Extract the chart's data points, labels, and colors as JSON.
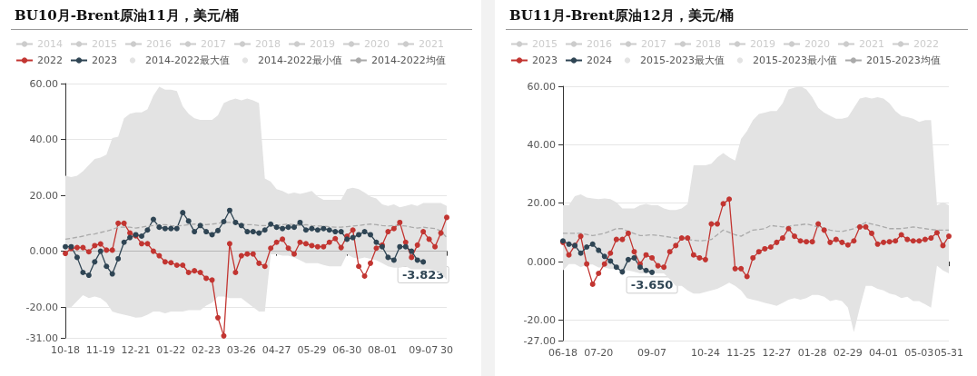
{
  "chart_data": [
    {
      "type": "line",
      "title": "BU10月-Brent原油11月，美元/桶",
      "legend": "top",
      "grid": "y",
      "marker": "circle",
      "line_style": "solid",
      "categories": [
        "10-18",
        null,
        null,
        null,
        null,
        null,
        "11-19",
        null,
        null,
        null,
        null,
        null,
        "12-21",
        null,
        null,
        null,
        null,
        null,
        "01-22",
        null,
        null,
        null,
        null,
        null,
        "02-23",
        null,
        null,
        null,
        null,
        null,
        "03-26",
        null,
        null,
        null,
        null,
        null,
        "04-27",
        null,
        null,
        null,
        null,
        null,
        "05-29",
        null,
        null,
        null,
        null,
        null,
        "06-30",
        null,
        null,
        null,
        null,
        null,
        "08-01",
        null,
        null,
        null,
        null,
        null,
        null,
        "09-07",
        null,
        null,
        null,
        "30"
      ],
      "ylim": [
        -31,
        60
      ],
      "yticks": [
        {
          "value": -31,
          "label": "-31.00"
        },
        {
          "value": -20,
          "label": "-20.00"
        },
        {
          "value": 0,
          "label": "0.000"
        },
        {
          "value": 20,
          "label": "20.00"
        },
        {
          "value": 40,
          "label": "40.00"
        },
        {
          "value": 60,
          "label": "60.00"
        }
      ],
      "annotations": [
        {
          "text": "-3.823",
          "x": "09-07",
          "y": -3.823
        }
      ],
      "series": [
        {
          "name": "2014",
          "color": "#cccccc",
          "values": [
            null,
            null,
            null,
            null,
            null,
            null,
            null,
            null,
            null,
            null,
            null,
            null,
            null,
            null,
            null,
            null,
            null,
            null,
            null,
            null,
            null,
            null,
            null,
            null,
            null,
            null,
            null,
            null,
            null,
            null,
            null,
            null,
            null,
            null,
            null,
            null,
            null,
            null,
            null,
            null,
            null,
            null,
            null,
            null,
            null,
            null,
            null,
            null,
            null,
            null,
            null,
            null,
            null,
            null,
            null,
            null,
            null,
            null,
            null,
            null,
            null,
            null,
            null,
            null,
            null,
            null
          ]
        },
        {
          "name": "2015",
          "color": "#cccccc",
          "values": [
            null,
            null,
            null,
            null,
            null,
            null,
            null,
            null,
            null,
            null,
            null,
            null,
            null,
            null,
            null,
            null,
            null,
            null,
            null,
            null,
            null,
            null,
            null,
            null,
            null,
            null,
            null,
            null,
            null,
            null,
            null,
            null,
            null,
            null,
            null,
            null,
            null,
            null,
            null,
            null,
            null,
            null,
            null,
            null,
            null,
            null,
            null,
            null,
            null,
            null,
            null,
            null,
            null,
            null,
            null,
            null,
            null,
            null,
            null,
            null,
            null,
            null,
            null,
            null,
            null,
            null
          ]
        },
        {
          "name": "2016",
          "color": "#cccccc",
          "values": [
            null,
            null,
            null,
            null,
            null,
            null,
            null,
            null,
            null,
            null,
            null,
            null,
            null,
            null,
            null,
            null,
            null,
            null,
            null,
            null,
            null,
            null,
            null,
            null,
            null,
            null,
            null,
            null,
            null,
            null,
            null,
            null,
            null,
            null,
            null,
            null,
            null,
            null,
            null,
            null,
            null,
            null,
            null,
            null,
            null,
            null,
            null,
            null,
            null,
            null,
            null,
            null,
            null,
            null,
            null,
            null,
            null,
            null,
            null,
            null,
            null,
            null,
            null,
            null,
            null,
            null
          ]
        },
        {
          "name": "2017",
          "color": "#cccccc",
          "values": [
            null,
            null,
            null,
            null,
            null,
            null,
            null,
            null,
            null,
            null,
            null,
            null,
            null,
            null,
            null,
            null,
            null,
            null,
            null,
            null,
            null,
            null,
            null,
            null,
            null,
            null,
            null,
            null,
            null,
            null,
            null,
            null,
            null,
            null,
            null,
            null,
            null,
            null,
            null,
            null,
            null,
            null,
            null,
            null,
            null,
            null,
            null,
            null,
            null,
            null,
            null,
            null,
            null,
            null,
            null,
            null,
            null,
            null,
            null,
            null,
            null,
            null,
            null,
            null,
            null,
            null
          ]
        },
        {
          "name": "2018",
          "color": "#cccccc",
          "values": [
            null,
            null,
            null,
            null,
            null,
            null,
            null,
            null,
            null,
            null,
            null,
            null,
            null,
            null,
            null,
            null,
            null,
            null,
            null,
            null,
            null,
            null,
            null,
            null,
            null,
            null,
            null,
            null,
            null,
            null,
            null,
            null,
            null,
            null,
            null,
            null,
            null,
            null,
            null,
            null,
            null,
            null,
            null,
            null,
            null,
            null,
            null,
            null,
            null,
            null,
            null,
            null,
            null,
            null,
            null,
            null,
            null,
            null,
            null,
            null,
            null,
            null,
            null,
            null,
            null,
            null
          ]
        },
        {
          "name": "2019",
          "color": "#cccccc",
          "values": [
            null,
            null,
            null,
            null,
            null,
            null,
            null,
            null,
            null,
            null,
            null,
            null,
            null,
            null,
            null,
            null,
            null,
            null,
            null,
            null,
            null,
            null,
            null,
            null,
            null,
            null,
            null,
            null,
            null,
            null,
            null,
            null,
            null,
            null,
            null,
            null,
            null,
            null,
            null,
            null,
            null,
            null,
            null,
            null,
            null,
            null,
            null,
            null,
            null,
            null,
            null,
            null,
            null,
            null,
            null,
            null,
            null,
            null,
            null,
            null,
            null,
            null,
            null,
            null,
            null,
            null
          ]
        },
        {
          "name": "2020",
          "color": "#cccccc",
          "values": [
            null,
            null,
            null,
            null,
            null,
            null,
            null,
            null,
            null,
            null,
            null,
            null,
            null,
            null,
            null,
            null,
            null,
            null,
            null,
            null,
            null,
            null,
            null,
            null,
            null,
            null,
            null,
            null,
            null,
            null,
            null,
            null,
            null,
            null,
            null,
            null,
            null,
            null,
            null,
            null,
            null,
            null,
            null,
            null,
            null,
            null,
            null,
            null,
            null,
            null,
            null,
            null,
            null,
            null,
            null,
            null,
            null,
            null,
            null,
            null,
            null,
            null,
            null,
            null,
            null,
            null
          ]
        },
        {
          "name": "2021",
          "color": "#cccccc",
          "values": [
            null,
            null,
            null,
            null,
            null,
            null,
            null,
            null,
            null,
            null,
            null,
            null,
            null,
            null,
            null,
            null,
            null,
            null,
            null,
            null,
            null,
            null,
            null,
            null,
            null,
            null,
            null,
            null,
            null,
            null,
            null,
            null,
            null,
            null,
            null,
            null,
            null,
            null,
            null,
            null,
            null,
            null,
            null,
            null,
            null,
            null,
            null,
            null,
            null,
            null,
            null,
            null,
            null,
            null,
            null,
            null,
            null,
            null,
            null,
            null,
            null,
            null,
            null,
            null,
            null,
            null
          ]
        },
        {
          "name": "2022",
          "color": "#c23531",
          "values": [
            -0.8,
            1,
            1.3,
            1.3,
            -0.2,
            2,
            2.6,
            0.4,
            0.4,
            10,
            10,
            6.5,
            5.5,
            2.7,
            2.7,
            0,
            -1.6,
            -3.8,
            -4.1,
            -5,
            -5,
            -7.6,
            -7,
            -7.6,
            -9.7,
            -10.3,
            -23.8,
            -30.3,
            2.7,
            -7.6,
            -1.6,
            -1,
            -1,
            -4.3,
            -5.4,
            1.1,
            3.2,
            4.3,
            1.1,
            -1,
            3.2,
            2.7,
            2,
            1.6,
            1.6,
            3.2,
            4.5,
            1.3,
            5.4,
            7.6,
            -5.4,
            -8.9,
            -4.3,
            1.1,
            2.2,
            7,
            8.1,
            10.3,
            3.2,
            -2.2,
            2.2,
            7,
            4.3,
            1.6,
            6.5,
            12.1
          ]
        },
        {
          "name": "2023",
          "color": "#2f4554",
          "values": [
            1.6,
            1.6,
            -2.2,
            -7.6,
            -8.6,
            -3.8,
            0,
            -5.4,
            -8.1,
            -2.7,
            3.2,
            4.9,
            5.9,
            5.4,
            7.6,
            11.4,
            8.6,
            8.1,
            8.1,
            8.1,
            13.8,
            10.8,
            7,
            9.2,
            7,
            5.9,
            7.4,
            10.6,
            14.6,
            10.3,
            9.2,
            7,
            7,
            6.5,
            7.6,
            9.7,
            8.6,
            8.1,
            8.6,
            8.6,
            10.3,
            7.6,
            8.1,
            7.6,
            8.1,
            7.6,
            7,
            7,
            4.3,
            4.9,
            5.9,
            7,
            5.9,
            3.2,
            1.6,
            -2.2,
            -3.2,
            1.6,
            1.6,
            0,
            -3.2,
            -3.823,
            null,
            null,
            null,
            null
          ]
        },
        {
          "name": "2014-2022最大值",
          "type": "area",
          "marker": "none",
          "color": "#e3e3e3",
          "values": [
            27,
            26.5,
            27,
            28.6,
            30.8,
            33,
            33.5,
            34.6,
            40.5,
            41,
            47.6,
            49.2,
            49.7,
            49.7,
            50.8,
            55.7,
            58.9,
            57.8,
            57.8,
            57.3,
            51.9,
            49.2,
            47.6,
            47,
            47,
            47,
            48.6,
            53,
            54,
            54.6,
            54,
            54.6,
            54,
            53,
            26,
            24.9,
            22.2,
            21.6,
            20.5,
            21,
            20.5,
            21,
            21.6,
            19.5,
            18.4,
            18.4,
            18.4,
            18.4,
            22.2,
            22.7,
            22.2,
            21,
            19.5,
            18.9,
            16.8,
            16.2,
            16.8,
            15.7,
            16.2,
            16.8,
            16.2,
            17.3,
            17.3,
            17.3,
            17.3,
            16.2
          ]
        },
        {
          "name": "2014-2022最小值",
          "type": "area",
          "marker": "none",
          "color": "#e3e3e3",
          "values": [
            -20,
            -20,
            -17.8,
            -15.7,
            -16.8,
            -16.2,
            -16.8,
            -18.4,
            -21.6,
            -22.2,
            -22.7,
            -23.2,
            -23.8,
            -23.6,
            -22.7,
            -21.6,
            -21.6,
            -22.2,
            -21.6,
            -21.6,
            -21.6,
            -21.1,
            -21.1,
            -21.1,
            -19.5,
            -18.4,
            -16.2,
            -16.2,
            -16.8,
            -16.8,
            -16.8,
            -18.4,
            -20,
            -21.6,
            -21.6,
            -1.1,
            -1.1,
            -1.6,
            -1.6,
            -2.2,
            -3.2,
            -4.3,
            -4.3,
            -4.3,
            -4.9,
            -5.4,
            -5.4,
            -5.4,
            -1.1,
            -2.2,
            -2.7,
            -2.2,
            -2.7,
            -3.2,
            -4.3,
            -5.4,
            -5.9,
            -5.9,
            -5.4,
            -6.5,
            -6.5,
            -6.5,
            -6.5,
            -7,
            -7.6,
            -10.3
          ]
        },
        {
          "name": "2014-2022均值",
          "marker": "none",
          "line_style": "dashed",
          "color": "#aaaaaa",
          "values": [
            4.3,
            4.6,
            5,
            5.4,
            5.9,
            6.2,
            6.7,
            7.2,
            7.8,
            8.6,
            8.6,
            8.6,
            8.3,
            8.6,
            9,
            9.2,
            9.5,
            9.5,
            9.2,
            9,
            9.2,
            9.5,
            9.7,
            9.7,
            9.5,
            9.7,
            10,
            10.3,
            10.3,
            10,
            9.7,
            9.5,
            9.5,
            9.2,
            9.2,
            9,
            9.2,
            9.5,
            9.7,
            9.5,
            9.2,
            9.5,
            9.2,
            9,
            9,
            8.8,
            8.6,
            8.6,
            8.8,
            9,
            9.2,
            9.5,
            9.7,
            9.5,
            9.2,
            9,
            9.2,
            9.2,
            9,
            8.6,
            8.3,
            8.6,
            8.3,
            8.1,
            7.2,
            4.9
          ]
        }
      ]
    },
    {
      "type": "line",
      "title": "BU11月-Brent原油12月，美元/桶",
      "legend": "top",
      "grid": "y",
      "marker": "circle",
      "line_style": "solid",
      "categories": [
        "06-18",
        null,
        null,
        null,
        null,
        null,
        "07-20",
        null,
        null,
        null,
        null,
        null,
        null,
        null,
        null,
        "09-07",
        null,
        null,
        null,
        null,
        null,
        null,
        null,
        null,
        "10-24",
        null,
        null,
        null,
        null,
        null,
        "11-25",
        null,
        null,
        null,
        null,
        null,
        "12-27",
        null,
        null,
        null,
        null,
        null,
        "01-28",
        null,
        null,
        null,
        null,
        null,
        "02-29",
        null,
        null,
        null,
        null,
        null,
        "04-01",
        null,
        null,
        null,
        null,
        null,
        "05-03",
        null,
        null,
        null,
        null,
        "05-31"
      ],
      "ylim": [
        -27,
        60
      ],
      "yticks": [
        {
          "value": -27,
          "label": "-27.00"
        },
        {
          "value": -20,
          "label": "-20.00"
        },
        {
          "value": 0,
          "label": "0.000"
        },
        {
          "value": 20,
          "label": "20.00"
        },
        {
          "value": 40,
          "label": "40.00"
        },
        {
          "value": 60,
          "label": "60.00"
        }
      ],
      "annotations": [
        {
          "text": "-3.650",
          "x": "09-07",
          "y": -3.65
        }
      ],
      "series": [
        {
          "name": "2015",
          "color": "#cccccc",
          "values": [
            null,
            null,
            null,
            null,
            null,
            null,
            null,
            null,
            null,
            null,
            null,
            null,
            null,
            null,
            null,
            null,
            null,
            null,
            null,
            null,
            null,
            null,
            null,
            null,
            null,
            null,
            null,
            null,
            null,
            null,
            null,
            null,
            null,
            null,
            null,
            null,
            null,
            null,
            null,
            null,
            null,
            null,
            null,
            null,
            null,
            null,
            null,
            null,
            null,
            null,
            null,
            null,
            null,
            null,
            null,
            null,
            null,
            null,
            null,
            null,
            null,
            null,
            null,
            null,
            null,
            null
          ]
        },
        {
          "name": "2016",
          "color": "#cccccc",
          "values": [
            null,
            null,
            null,
            null,
            null,
            null,
            null,
            null,
            null,
            null,
            null,
            null,
            null,
            null,
            null,
            null,
            null,
            null,
            null,
            null,
            null,
            null,
            null,
            null,
            null,
            null,
            null,
            null,
            null,
            null,
            null,
            null,
            null,
            null,
            null,
            null,
            null,
            null,
            null,
            null,
            null,
            null,
            null,
            null,
            null,
            null,
            null,
            null,
            null,
            null,
            null,
            null,
            null,
            null,
            null,
            null,
            null,
            null,
            null,
            null,
            null,
            null,
            null,
            null,
            null,
            null
          ]
        },
        {
          "name": "2017",
          "color": "#cccccc",
          "values": [
            null,
            null,
            null,
            null,
            null,
            null,
            null,
            null,
            null,
            null,
            null,
            null,
            null,
            null,
            null,
            null,
            null,
            null,
            null,
            null,
            null,
            null,
            null,
            null,
            null,
            null,
            null,
            null,
            null,
            null,
            null,
            null,
            null,
            null,
            null,
            null,
            null,
            null,
            null,
            null,
            null,
            null,
            null,
            null,
            null,
            null,
            null,
            null,
            null,
            null,
            null,
            null,
            null,
            null,
            null,
            null,
            null,
            null,
            null,
            null,
            null,
            null,
            null,
            null,
            null,
            null
          ]
        },
        {
          "name": "2018",
          "color": "#cccccc",
          "values": [
            null,
            null,
            null,
            null,
            null,
            null,
            null,
            null,
            null,
            null,
            null,
            null,
            null,
            null,
            null,
            null,
            null,
            null,
            null,
            null,
            null,
            null,
            null,
            null,
            null,
            null,
            null,
            null,
            null,
            null,
            null,
            null,
            null,
            null,
            null,
            null,
            null,
            null,
            null,
            null,
            null,
            null,
            null,
            null,
            null,
            null,
            null,
            null,
            null,
            null,
            null,
            null,
            null,
            null,
            null,
            null,
            null,
            null,
            null,
            null,
            null,
            null,
            null,
            null,
            null,
            null
          ]
        },
        {
          "name": "2019",
          "color": "#cccccc",
          "values": [
            null,
            null,
            null,
            null,
            null,
            null,
            null,
            null,
            null,
            null,
            null,
            null,
            null,
            null,
            null,
            null,
            null,
            null,
            null,
            null,
            null,
            null,
            null,
            null,
            null,
            null,
            null,
            null,
            null,
            null,
            null,
            null,
            null,
            null,
            null,
            null,
            null,
            null,
            null,
            null,
            null,
            null,
            null,
            null,
            null,
            null,
            null,
            null,
            null,
            null,
            null,
            null,
            null,
            null,
            null,
            null,
            null,
            null,
            null,
            null,
            null,
            null,
            null,
            null,
            null,
            null
          ]
        },
        {
          "name": "2020",
          "color": "#cccccc",
          "values": [
            null,
            null,
            null,
            null,
            null,
            null,
            null,
            null,
            null,
            null,
            null,
            null,
            null,
            null,
            null,
            null,
            null,
            null,
            null,
            null,
            null,
            null,
            null,
            null,
            null,
            null,
            null,
            null,
            null,
            null,
            null,
            null,
            null,
            null,
            null,
            null,
            null,
            null,
            null,
            null,
            null,
            null,
            null,
            null,
            null,
            null,
            null,
            null,
            null,
            null,
            null,
            null,
            null,
            null,
            null,
            null,
            null,
            null,
            null,
            null,
            null,
            null,
            null,
            null,
            null,
            null
          ]
        },
        {
          "name": "2021",
          "color": "#cccccc",
          "values": [
            null,
            null,
            null,
            null,
            null,
            null,
            null,
            null,
            null,
            null,
            null,
            null,
            null,
            null,
            null,
            null,
            null,
            null,
            null,
            null,
            null,
            null,
            null,
            null,
            null,
            null,
            null,
            null,
            null,
            null,
            null,
            null,
            null,
            null,
            null,
            null,
            null,
            null,
            null,
            null,
            null,
            null,
            null,
            null,
            null,
            null,
            null,
            null,
            null,
            null,
            null,
            null,
            null,
            null,
            null,
            null,
            null,
            null,
            null,
            null,
            null,
            null,
            null,
            null,
            null,
            null
          ]
        },
        {
          "name": "2022",
          "color": "#cccccc",
          "values": [
            null,
            null,
            null,
            null,
            null,
            null,
            null,
            null,
            null,
            null,
            null,
            null,
            null,
            null,
            null,
            null,
            null,
            null,
            null,
            null,
            null,
            null,
            null,
            null,
            null,
            null,
            null,
            null,
            null,
            null,
            null,
            null,
            null,
            null,
            null,
            null,
            null,
            null,
            null,
            null,
            null,
            null,
            null,
            null,
            null,
            null,
            null,
            null,
            null,
            null,
            null,
            null,
            null,
            null,
            null,
            null,
            null,
            null,
            null,
            null,
            null,
            null,
            null,
            null,
            null,
            null
          ]
        },
        {
          "name": "2023",
          "color": "#c23531",
          "values": [
            6.6,
            2.3,
            5.5,
            8.7,
            -0.8,
            -7.7,
            -4,
            -0.8,
            2.9,
            7.6,
            7.6,
            9.7,
            3.4,
            -0.8,
            2.3,
            1.3,
            -1.4,
            -1.9,
            3.4,
            5.5,
            8.1,
            8.1,
            2.3,
            1.3,
            0.7,
            12.9,
            12.9,
            19.8,
            21.4,
            -2.4,
            -2.4,
            -5.1,
            1.3,
            3.4,
            4.4,
            5,
            6.6,
            8.1,
            11.3,
            8.7,
            7.1,
            6.8,
            6.8,
            12.9,
            10.8,
            6.6,
            7.6,
            6.6,
            5.7,
            7.1,
            11.9,
            11.9,
            9.7,
            6,
            6.6,
            6.8,
            7.1,
            9.2,
            7.6,
            7.1,
            7.1,
            7.6,
            8.1,
            9.9,
            5.5,
            8.7
          ]
        },
        {
          "name": "2024",
          "color": "#2f4554",
          "values": [
            7.1,
            6,
            5.5,
            2.9,
            5,
            6,
            3.9,
            1.8,
            0.2,
            -1.9,
            -3.5,
            0.7,
            1.3,
            -1.9,
            -3,
            -3.65,
            null,
            null,
            null,
            null,
            null,
            null,
            null,
            null,
            null,
            null,
            null,
            null,
            null,
            null,
            null,
            null,
            null,
            null,
            null,
            null,
            null,
            null,
            null,
            null,
            null,
            null,
            null,
            null,
            null,
            null,
            null,
            null,
            null,
            null,
            null,
            null,
            null,
            null,
            null,
            null,
            null,
            null,
            null,
            null,
            null,
            null,
            null,
            null,
            null,
            null
          ]
        },
        {
          "name": "2015-2023最大值",
          "type": "area",
          "marker": "none",
          "color": "#e3e3e3",
          "values": [
            19.3,
            19.3,
            22.4,
            23,
            21.9,
            21.6,
            21.4,
            21.6,
            21.4,
            20.3,
            18.2,
            18.2,
            18.2,
            19.3,
            19.8,
            19.3,
            19.3,
            18.2,
            17.7,
            17.7,
            18.2,
            19.8,
            33,
            33,
            33,
            33.5,
            35.7,
            37.2,
            35.7,
            34.6,
            42,
            44.7,
            48.4,
            50.5,
            51,
            51.5,
            51.5,
            54.2,
            58.9,
            59.5,
            60,
            58.9,
            56.3,
            52.6,
            51,
            49.9,
            48.9,
            48.9,
            49.4,
            52.6,
            55.8,
            56.3,
            55.8,
            56.3,
            55.8,
            54.2,
            51.5,
            49.9,
            49.4,
            48.9,
            47.8,
            48.4,
            48.4,
            19.3,
            20.3,
            19.3
          ]
        },
        {
          "name": "2015-2023最小值",
          "type": "area",
          "marker": "none",
          "color": "#e3e3e3",
          "values": [
            -3,
            -0.8,
            -0.8,
            -1.9,
            -1,
            -1,
            -2,
            -2,
            -2.5,
            -2.5,
            -3,
            -3,
            -3.5,
            -4,
            -4,
            -4,
            -4,
            -4,
            -6,
            -8.3,
            -8.3,
            -9.8,
            -10.9,
            -10.9,
            -10.4,
            -9.8,
            -9.3,
            -8.3,
            -7.2,
            -8.3,
            -9.8,
            -12.5,
            -13,
            -13.5,
            -14.1,
            -14.6,
            -15.1,
            -14.1,
            -13,
            -12.5,
            -13,
            -12.5,
            -11.4,
            -11.4,
            -12,
            -13.5,
            -13,
            -13.5,
            -15.7,
            -24.1,
            -15.7,
            -8.3,
            -8.3,
            -9.3,
            -9.8,
            -10.9,
            -11.4,
            -12.5,
            -12,
            -13.5,
            -13.5,
            -14.6,
            -15.7,
            -1.4,
            -3,
            -4
          ]
        },
        {
          "name": "2015-2023均值",
          "marker": "none",
          "line_style": "dashed",
          "color": "#aaaaaa",
          "values": [
            9.7,
            9.7,
            9.7,
            9.7,
            9.3,
            8.9,
            9.3,
            9.7,
            10.5,
            11.3,
            11.3,
            10.3,
            9.6,
            8.9,
            9,
            9.2,
            9,
            8.7,
            8.4,
            8.1,
            7.8,
            7.6,
            7.3,
            7.1,
            7.3,
            7.6,
            9.2,
            10.8,
            10,
            9.2,
            8.7,
            9.8,
            10.8,
            11,
            11.3,
            12.4,
            12.1,
            11.9,
            12.1,
            12.4,
            12.6,
            12.9,
            12.4,
            11.9,
            11.4,
            10.8,
            10.5,
            10.3,
            10.8,
            11.3,
            12.4,
            13.4,
            12.9,
            12.4,
            11.9,
            11.3,
            11.3,
            11.3,
            11.6,
            11.9,
            11.6,
            11.3,
            11,
            10.8,
            10.8,
            10.8
          ]
        }
      ]
    }
  ]
}
